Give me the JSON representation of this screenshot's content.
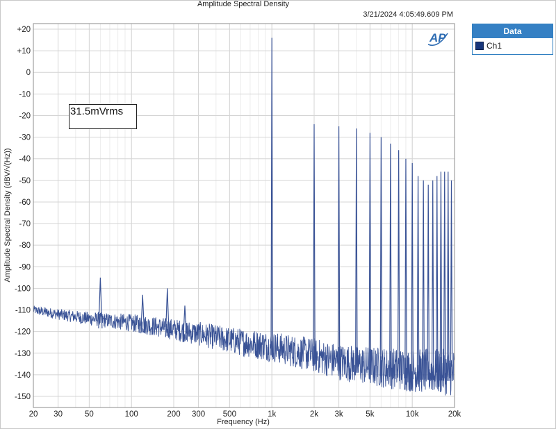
{
  "chart_data": {
    "type": "line",
    "title": "Amplitude Spectral Density",
    "timestamp": "3/21/2024 4:05:49.609 PM",
    "xlabel": "Frequency (Hz)",
    "ylabel": "Amplitude Spectral Density (dBV/√(Hz))",
    "xscale": "log",
    "xlim": [
      20,
      20000
    ],
    "ylim": [
      -155,
      25
    ],
    "grid": true,
    "legend_placement": "right-top",
    "legend_title": "Data",
    "annotation": "31.5mVrms",
    "x_tick_values": [
      20,
      30,
      50,
      100,
      200,
      300,
      500,
      1000,
      2000,
      3000,
      5000,
      10000,
      20000
    ],
    "x_tick_labels": [
      "20",
      "30",
      "50",
      "100",
      "200",
      "300",
      "500",
      "1k",
      "2k",
      "3k",
      "5k",
      "10k",
      "20k"
    ],
    "y_tick_values": [
      20,
      10,
      0,
      -10,
      -20,
      -30,
      -40,
      -50,
      -60,
      -70,
      -80,
      -90,
      -100,
      -110,
      -120,
      -130,
      -140,
      -150
    ],
    "y_tick_labels": [
      "+20",
      "+10",
      "0",
      "-10",
      "-20",
      "-30",
      "-40",
      "-50",
      "-60",
      "-70",
      "-80",
      "-90",
      "-100",
      "-110",
      "-120",
      "-130",
      "-140",
      "-150"
    ],
    "series": [
      {
        "name": "Ch1",
        "color": "#3a5396",
        "noise_floor": [
          [
            20,
            -110
          ],
          [
            30,
            -112
          ],
          [
            50,
            -114
          ],
          [
            100,
            -116
          ],
          [
            200,
            -119
          ],
          [
            300,
            -121
          ],
          [
            500,
            -124
          ],
          [
            1000,
            -127
          ],
          [
            2000,
            -131
          ],
          [
            3000,
            -134
          ],
          [
            5000,
            -136
          ],
          [
            10000,
            -138
          ],
          [
            20000,
            -139
          ]
        ],
        "peaks": [
          {
            "x": 60,
            "y": -95
          },
          {
            "x": 120,
            "y": -103
          },
          {
            "x": 180,
            "y": -100
          },
          {
            "x": 240,
            "y": -108
          },
          {
            "x": 1000,
            "y": 16
          },
          {
            "x": 2000,
            "y": -24
          },
          {
            "x": 3000,
            "y": -25
          },
          {
            "x": 4000,
            "y": -26
          },
          {
            "x": 5000,
            "y": -28
          },
          {
            "x": 6000,
            "y": -30
          },
          {
            "x": 7000,
            "y": -33
          },
          {
            "x": 8000,
            "y": -36
          },
          {
            "x": 9000,
            "y": -40
          },
          {
            "x": 10000,
            "y": -42
          },
          {
            "x": 11000,
            "y": -48
          },
          {
            "x": 12000,
            "y": -50
          },
          {
            "x": 13000,
            "y": -52
          },
          {
            "x": 14000,
            "y": -50
          },
          {
            "x": 15000,
            "y": -48
          },
          {
            "x": 16000,
            "y": -46
          },
          {
            "x": 17000,
            "y": -46
          },
          {
            "x": 18000,
            "y": -46
          },
          {
            "x": 19000,
            "y": -50
          }
        ]
      }
    ]
  }
}
